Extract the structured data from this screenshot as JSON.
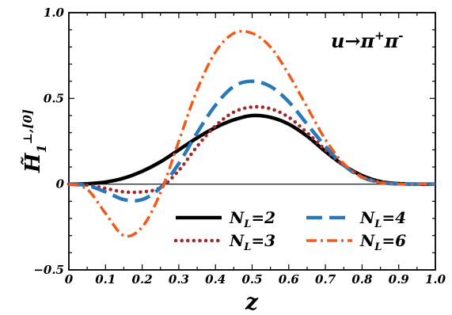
{
  "chart_data": {
    "type": "line",
    "title": "",
    "annotation": {
      "text": "u→π",
      "sup1": "+",
      "mid": "π",
      "sup2": "-"
    },
    "xlabel": "z",
    "ylabel": {
      "main": "H̃",
      "sub": "1",
      "sup": "⊥,[0]"
    },
    "xlim": [
      0,
      1.0
    ],
    "ylim": [
      -0.5,
      1.0
    ],
    "xticks": [
      0,
      0.1,
      0.2,
      0.3,
      0.4,
      0.5,
      0.6,
      0.7,
      0.8,
      0.9,
      1.0
    ],
    "xtick_labels": [
      "0",
      "0.1",
      "0.2",
      "0.3",
      "0.4",
      "0.5",
      "0.6",
      "0.7",
      "0.8",
      "0.9",
      "1.0"
    ],
    "yticks": [
      -0.5,
      0,
      0.5,
      1.0
    ],
    "ytick_labels": [
      "−0.5",
      "0",
      "0.5",
      "1.0"
    ],
    "zero_line": true,
    "grid": false,
    "legend": {
      "placement": "bottom-right",
      "columns": 2
    },
    "x": [
      0,
      0.05,
      0.1,
      0.15,
      0.2,
      0.25,
      0.3,
      0.35,
      0.4,
      0.45,
      0.5,
      0.55,
      0.6,
      0.65,
      0.7,
      0.75,
      0.8,
      0.85,
      0.9,
      0.95,
      1.0
    ],
    "series": [
      {
        "name": "N",
        "sub": "L",
        "suffix": "=2",
        "color": "#000000",
        "dash": "solid",
        "values": [
          0,
          0.002,
          0.012,
          0.035,
          0.075,
          0.13,
          0.2,
          0.27,
          0.33,
          0.375,
          0.4,
          0.39,
          0.35,
          0.28,
          0.19,
          0.11,
          0.05,
          0.015,
          0.003,
          0,
          0
        ]
      },
      {
        "name": "N",
        "sub": "L",
        "suffix": "=3",
        "color": "#a02a2a",
        "dash": "dotted",
        "values": [
          0,
          -0.005,
          -0.025,
          -0.045,
          -0.045,
          -0.02,
          0.08,
          0.22,
          0.34,
          0.42,
          0.45,
          0.44,
          0.39,
          0.3,
          0.2,
          0.11,
          0.045,
          0.012,
          0.002,
          0,
          0
        ]
      },
      {
        "name": "N",
        "sub": "L",
        "suffix": "=4",
        "color": "#2a78b8",
        "dash": "dashed",
        "values": [
          0,
          -0.008,
          -0.045,
          -0.09,
          -0.09,
          -0.02,
          0.12,
          0.3,
          0.46,
          0.57,
          0.6,
          0.57,
          0.48,
          0.35,
          0.22,
          0.11,
          0.04,
          0.01,
          0.001,
          0,
          0
        ]
      },
      {
        "name": "N",
        "sub": "L",
        "suffix": "=6",
        "color": "#f05a1a",
        "dash": "dashdot",
        "values": [
          0,
          -0.03,
          -0.17,
          -0.3,
          -0.25,
          -0.05,
          0.25,
          0.55,
          0.77,
          0.88,
          0.88,
          0.8,
          0.64,
          0.45,
          0.26,
          0.12,
          0.04,
          0.008,
          0,
          0,
          0
        ]
      }
    ]
  }
}
